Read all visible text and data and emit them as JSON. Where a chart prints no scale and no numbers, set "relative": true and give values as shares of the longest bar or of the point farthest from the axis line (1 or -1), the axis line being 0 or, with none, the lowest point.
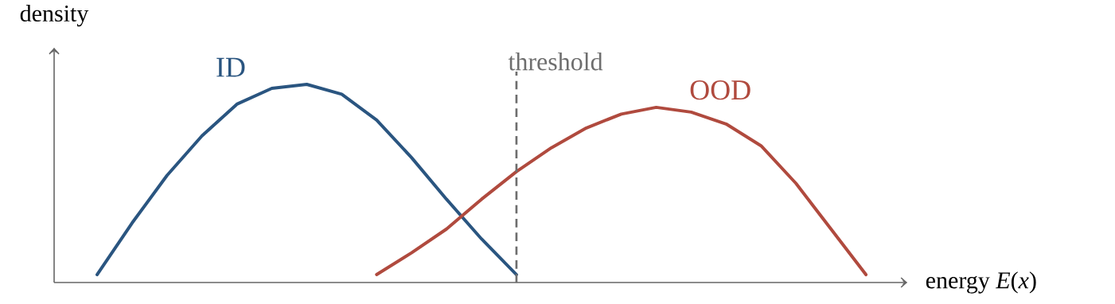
{
  "chart_data": {
    "type": "line",
    "relative": true,
    "xlabel": "energy *E*(*x*)",
    "ylabel": "density",
    "categories": [
      null,
      null,
      null,
      null,
      null,
      null,
      null,
      null,
      null,
      null,
      null,
      null,
      null,
      null,
      null,
      null,
      null,
      null,
      null,
      null,
      null,
      null,
      null
    ],
    "series": [
      {
        "name": "ID",
        "color": "#2a5580",
        "values": [
          0.04,
          0.3,
          0.54,
          0.74,
          0.9,
          0.98,
          1.0,
          0.95,
          0.82,
          0.63,
          0.42,
          0.22,
          0.04,
          null,
          null,
          null,
          null,
          null,
          null,
          null,
          null,
          null,
          null
        ]
      },
      {
        "name": "OOD",
        "color": "#b04a3e",
        "values": [
          null,
          null,
          null,
          null,
          null,
          null,
          null,
          null,
          0.04,
          0.15,
          0.27,
          0.42,
          0.56,
          0.68,
          0.78,
          0.85,
          0.884,
          0.86,
          0.8,
          0.69,
          0.5,
          0.27,
          0.04
        ]
      }
    ],
    "annotations": [
      "threshold"
    ]
  }
}
